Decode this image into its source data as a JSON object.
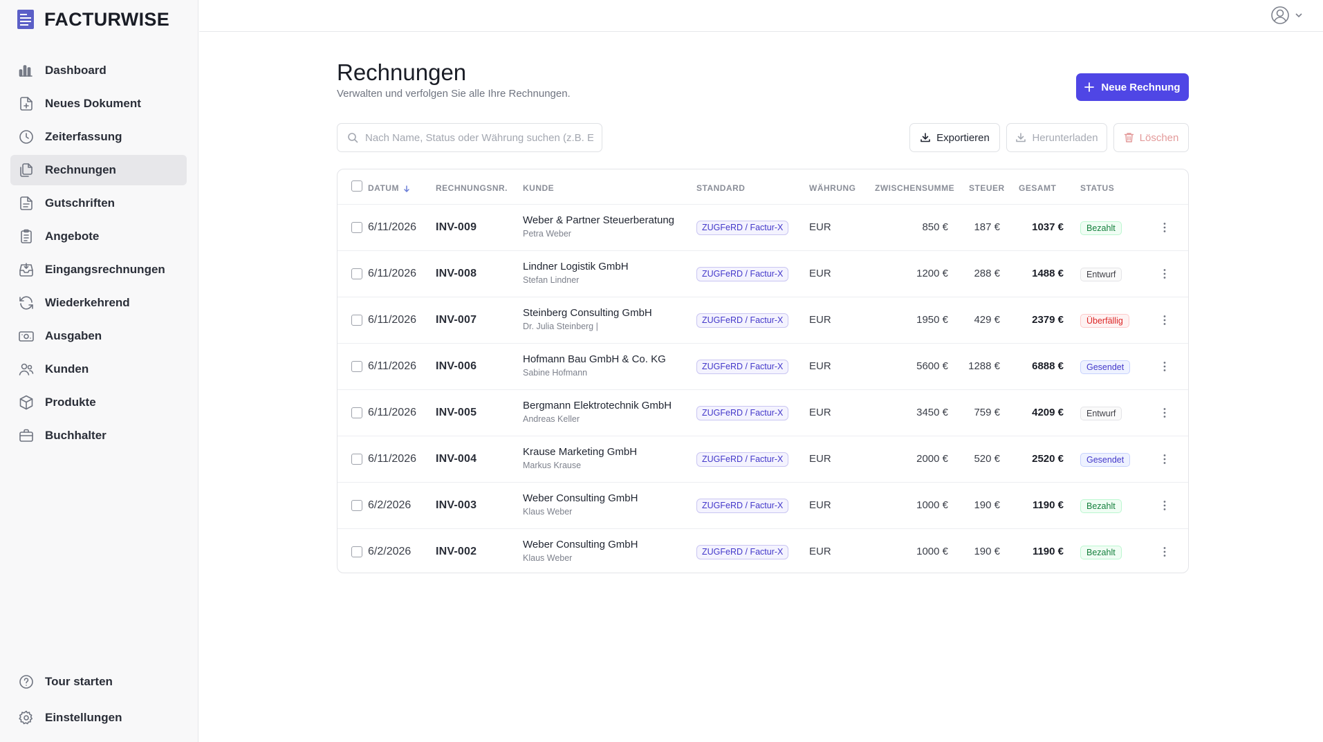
{
  "brand": {
    "name": "FACTURWISE"
  },
  "sidebar": {
    "items": [
      {
        "label": "Dashboard",
        "icon": "bar-chart-icon"
      },
      {
        "label": "Neues Dokument",
        "icon": "file-plus-icon"
      },
      {
        "label": "Zeiterfassung",
        "icon": "clock-icon"
      },
      {
        "label": "Rechnungen",
        "icon": "files-icon",
        "active": true
      },
      {
        "label": "Gutschriften",
        "icon": "file-text-icon"
      },
      {
        "label": "Angebote",
        "icon": "clipboard-icon"
      },
      {
        "label": "Eingangsrechnungen",
        "icon": "inbox-icon"
      },
      {
        "label": "Wiederkehrend",
        "icon": "refresh-icon"
      },
      {
        "label": "Ausgaben",
        "icon": "banknote-icon"
      },
      {
        "label": "Kunden",
        "icon": "users-icon"
      },
      {
        "label": "Produkte",
        "icon": "package-icon"
      },
      {
        "label": "Buchhalter",
        "icon": "briefcase-icon"
      }
    ],
    "bottom": [
      {
        "label": "Tour starten",
        "icon": "help-circle-icon"
      },
      {
        "label": "Einstellungen",
        "icon": "gear-icon"
      }
    ]
  },
  "page": {
    "title": "Rechnungen",
    "subtitle": "Verwalten und verfolgen Sie alle Ihre Rechnungen.",
    "new_button": "Neue Rechnung"
  },
  "toolbar": {
    "search_placeholder": "Nach Name, Status oder Währung suchen (z.B. EUI",
    "export": "Exportieren",
    "download": "Herunterladen",
    "delete": "Löschen"
  },
  "table": {
    "columns": {
      "date": "DATUM",
      "number": "RECHNUNGSNR.",
      "customer": "KUNDE",
      "standard": "STANDARD",
      "currency": "WÄHRUNG",
      "subtotal": "ZWISCHENSUMME",
      "tax": "STEUER",
      "total": "GESAMT",
      "status": "STATUS"
    },
    "rows": [
      {
        "date": "6/11/2026",
        "number": "INV-009",
        "customer": "Weber & Partner Steuerberatung",
        "contact": "Petra Weber",
        "standard": "ZUGFeRD / Factur-X",
        "currency": "EUR",
        "subtotal": "850 €",
        "tax": "187 €",
        "total": "1037 €",
        "status": "Bezahlt"
      },
      {
        "date": "6/11/2026",
        "number": "INV-008",
        "customer": "Lindner Logistik GmbH",
        "contact": "Stefan Lindner",
        "standard": "ZUGFeRD / Factur-X",
        "currency": "EUR",
        "subtotal": "1200 €",
        "tax": "288 €",
        "total": "1488 €",
        "status": "Entwurf"
      },
      {
        "date": "6/11/2026",
        "number": "INV-007",
        "customer": "Steinberg Consulting GmbH",
        "contact": "Dr. Julia Steinberg |",
        "standard": "ZUGFeRD / Factur-X",
        "currency": "EUR",
        "subtotal": "1950 €",
        "tax": "429 €",
        "total": "2379 €",
        "status": "Überfällig"
      },
      {
        "date": "6/11/2026",
        "number": "INV-006",
        "customer": "Hofmann Bau GmbH & Co. KG",
        "contact": "Sabine Hofmann",
        "standard": "ZUGFeRD / Factur-X",
        "currency": "EUR",
        "subtotal": "5600 €",
        "tax": "1288 €",
        "total": "6888 €",
        "status": "Gesendet"
      },
      {
        "date": "6/11/2026",
        "number": "INV-005",
        "customer": "Bergmann Elektrotechnik GmbH",
        "contact": "Andreas Keller",
        "standard": "ZUGFeRD / Factur-X",
        "currency": "EUR",
        "subtotal": "3450 €",
        "tax": "759 €",
        "total": "4209 €",
        "status": "Entwurf"
      },
      {
        "date": "6/11/2026",
        "number": "INV-004",
        "customer": "Krause Marketing GmbH",
        "contact": "Markus Krause",
        "standard": "ZUGFeRD / Factur-X",
        "currency": "EUR",
        "subtotal": "2000 €",
        "tax": "520 €",
        "total": "2520 €",
        "status": "Gesendet"
      },
      {
        "date": "6/2/2026",
        "number": "INV-003",
        "customer": "Weber Consulting GmbH",
        "contact": "Klaus Weber",
        "standard": "ZUGFeRD / Factur-X",
        "currency": "EUR",
        "subtotal": "1000 €",
        "tax": "190 €",
        "total": "1190 €",
        "status": "Bezahlt"
      },
      {
        "date": "6/2/2026",
        "number": "INV-002",
        "customer": "Weber Consulting GmbH",
        "contact": "Klaus Weber",
        "standard": "ZUGFeRD / Factur-X",
        "currency": "EUR",
        "subtotal": "1000 €",
        "tax": "190 €",
        "total": "1190 €",
        "status": "Bezahlt"
      }
    ]
  },
  "status_colors": {
    "Bezahlt": {
      "text": "#15803d",
      "bg": "#f0fdf4",
      "border": "#bbf7d0"
    },
    "Entwurf": {
      "text": "#3f3f46",
      "bg": "#fafafa",
      "border": "#e4e4e7"
    },
    "Überfällig": {
      "text": "#dc2626",
      "bg": "#fef2f2",
      "border": "#fecaca"
    },
    "Gesendet": {
      "text": "#4338ca",
      "bg": "#eef2ff",
      "border": "#c7d2fe"
    }
  },
  "colors": {
    "accent": "#4f46e5"
  }
}
